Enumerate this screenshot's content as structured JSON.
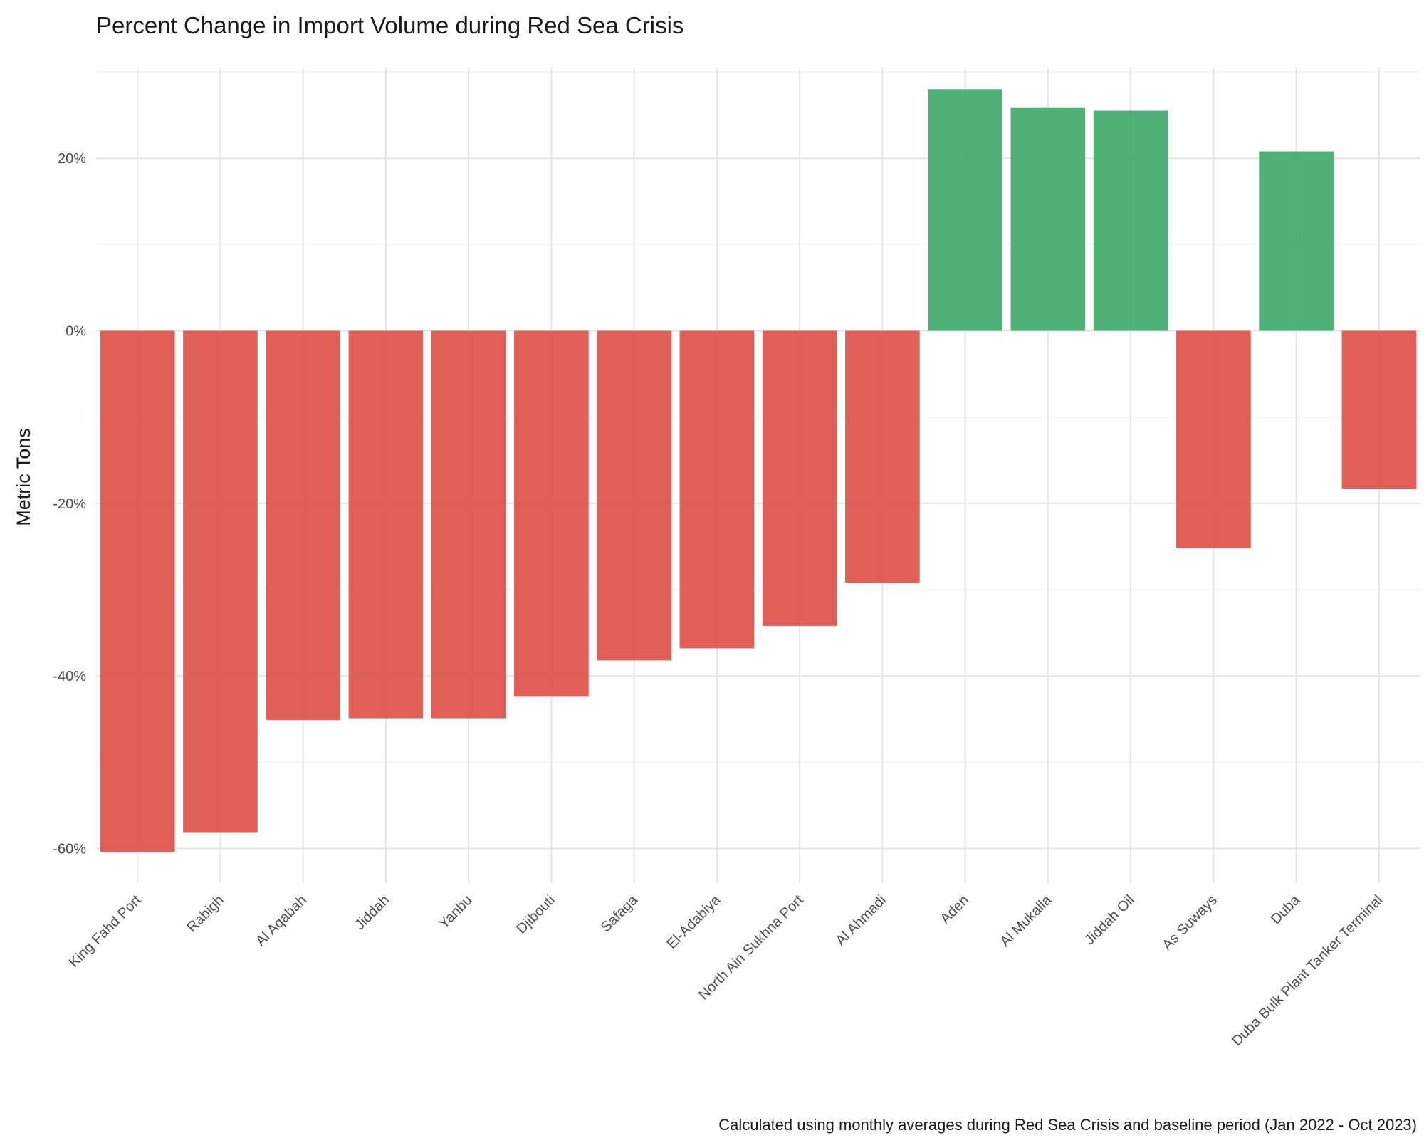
{
  "chart_data": {
    "type": "bar",
    "title": "Percent Change in Import Volume during Red Sea Crisis",
    "xlabel": "",
    "ylabel": "Metric Tons",
    "caption": "Calculated using monthly averages during Red Sea Crisis and baseline period (Jan 2022 - Oct 2023)",
    "categories": [
      "King Fahd Port",
      "Rabigh",
      "Al Aqabah",
      "Jiddah",
      "Yanbu",
      "Djibouti",
      "Safaga",
      "El-Adabiya",
      "North Ain Sukhna Port",
      "Al Ahmadi",
      "Aden",
      "Al Mukalla",
      "Jiddah Oil",
      "As Suways",
      "Duba",
      "Duba Bulk Plant Tanker Terminal"
    ],
    "values": [
      -60.4,
      -58.1,
      -45.1,
      -44.9,
      -44.9,
      -42.4,
      -38.2,
      -36.8,
      -34.2,
      -29.2,
      28.0,
      25.9,
      25.5,
      -25.2,
      20.8,
      -18.3
    ],
    "ylim": [
      -64,
      30.5
    ],
    "yticks": [
      -60,
      -40,
      -20,
      0,
      20
    ],
    "ytick_labels": [
      "-60%",
      "-40%",
      "-20%",
      "0%",
      "20%"
    ],
    "grid": true,
    "legend": "none",
    "colors": {
      "positive": "#3ea66a",
      "negative": "#dd4f47",
      "grid_major": "#e5e5e5",
      "grid_minor": "#f4f4f4"
    }
  }
}
